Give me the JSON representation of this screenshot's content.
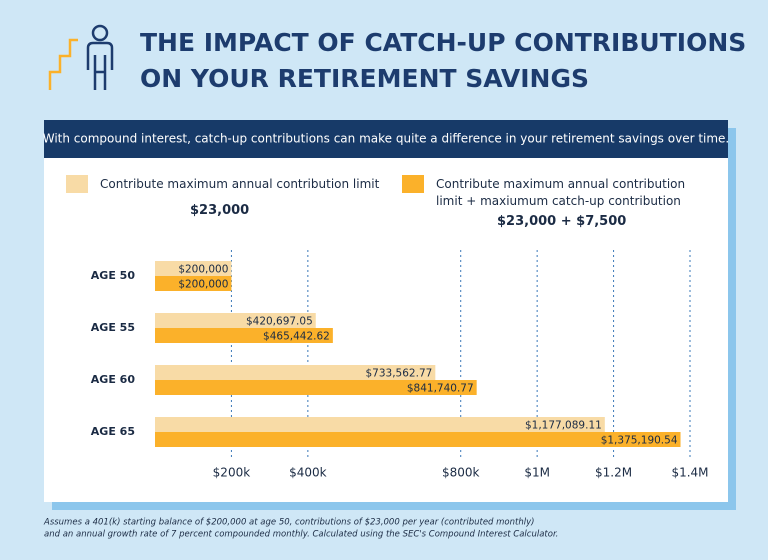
{
  "chart_data": {
    "type": "barh",
    "title": [
      "THE IMPACT OF CATCH-UP CONTRIBUTIONS",
      "ON YOUR RETIREMENT SAVINGS"
    ],
    "subtitle": "With compound interest, catch-up contributions can make quite a difference in your retirement savings over time.",
    "categories": [
      "AGE 50",
      "AGE 55",
      "AGE 60",
      "AGE 65"
    ],
    "series": [
      {
        "name": "Contribute maximum annual contribution limit",
        "amount": "$23,000",
        "color": "#f8dba6",
        "values": [
          200000,
          420697.05,
          733562.77,
          1177089.11
        ],
        "value_labels": [
          "$200,000",
          "$420,697.05",
          "$733,562.77",
          "$1,177,089.11"
        ]
      },
      {
        "name": "Contribute maximum annual contribution limit + maxiumum catch-up contribution",
        "amount": "$23,000 + $7,500",
        "color": "#fbb12a",
        "values": [
          200000,
          465442.62,
          841740.77,
          1375190.54
        ],
        "value_labels": [
          "$200,000",
          "$465,442.62",
          "$841,740.77",
          "$1,375,190.54"
        ]
      }
    ],
    "xlim": [
      0,
      1400000
    ],
    "xticks": [
      {
        "value": 200000,
        "label": "$200k"
      },
      {
        "value": 400000,
        "label": "$400k"
      },
      {
        "value": 800000,
        "label": "$800k"
      },
      {
        "value": 1000000,
        "label": "$1M"
      },
      {
        "value": 1200000,
        "label": "$1.2M"
      },
      {
        "value": 1400000,
        "label": "$1.4M"
      }
    ],
    "grid": true,
    "footnote": [
      "Assumes a 401(k) starting balance of $200,000 at age 50, contributions of $23,000 per year (contributed monthly)",
      "and an annual growth rate of 7 percent compounded monthly. Calculated using the SEC's Compound Interest Calculator."
    ]
  }
}
